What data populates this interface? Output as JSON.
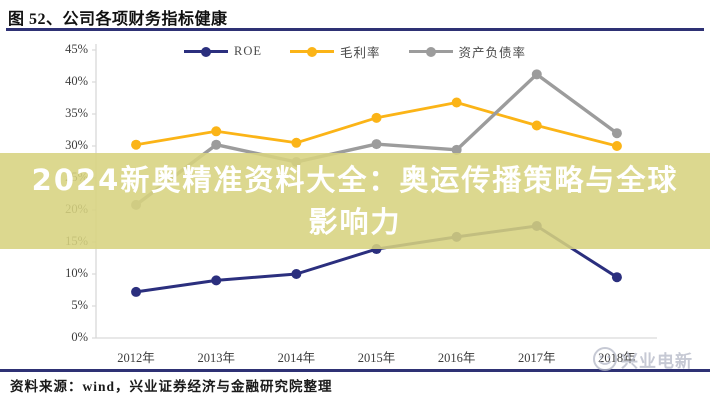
{
  "header": {
    "title": "图 52、公司各项财务指标健康"
  },
  "chart_data": {
    "type": "line",
    "categories": [
      "2012年",
      "2013年",
      "2014年",
      "2015年",
      "2016年",
      "2017年",
      "2018年"
    ],
    "series": [
      {
        "name": "ROE",
        "color": "#2b2f7e",
        "line_width": 3,
        "values": [
          7.2,
          9.0,
          10.0,
          13.9,
          15.8,
          17.5,
          9.5
        ]
      },
      {
        "name": "毛利率",
        "color": "#fbb417",
        "line_width": 2.8,
        "values": [
          30.2,
          32.3,
          30.5,
          34.4,
          36.8,
          33.2,
          30.0
        ]
      },
      {
        "name": "资产负债率",
        "color": "#9c9c9c",
        "line_width": 3.4,
        "values": [
          20.8,
          30.2,
          27.5,
          30.3,
          29.4,
          41.2,
          32.0
        ]
      }
    ],
    "draw_order": [
      1,
      2,
      0
    ],
    "ylim": [
      0,
      45
    ],
    "ytick_step": 5,
    "ytick_labels": [
      "0%",
      "5%",
      "10%",
      "15%",
      "20%",
      "25%",
      "30%",
      "35%",
      "40%",
      "45%"
    ],
    "grid": false,
    "legend_position": "top-center",
    "axis_color": "#d9d9d9",
    "marker_radius": 5
  },
  "overlay_banner": {
    "line1": "2024新奥精准资料大全：奥运传播策略与全球",
    "line2": "影响力",
    "bg_color": "#d7d37f",
    "bg_opacity": 0.88,
    "text_color": "#ffffff"
  },
  "footer": {
    "source_text": "资料来源：wind，兴业证券经济与金融研究院整理"
  },
  "watermark": {
    "text": "兴业电新"
  },
  "theme": {
    "accent_navy": "#2e3174"
  }
}
